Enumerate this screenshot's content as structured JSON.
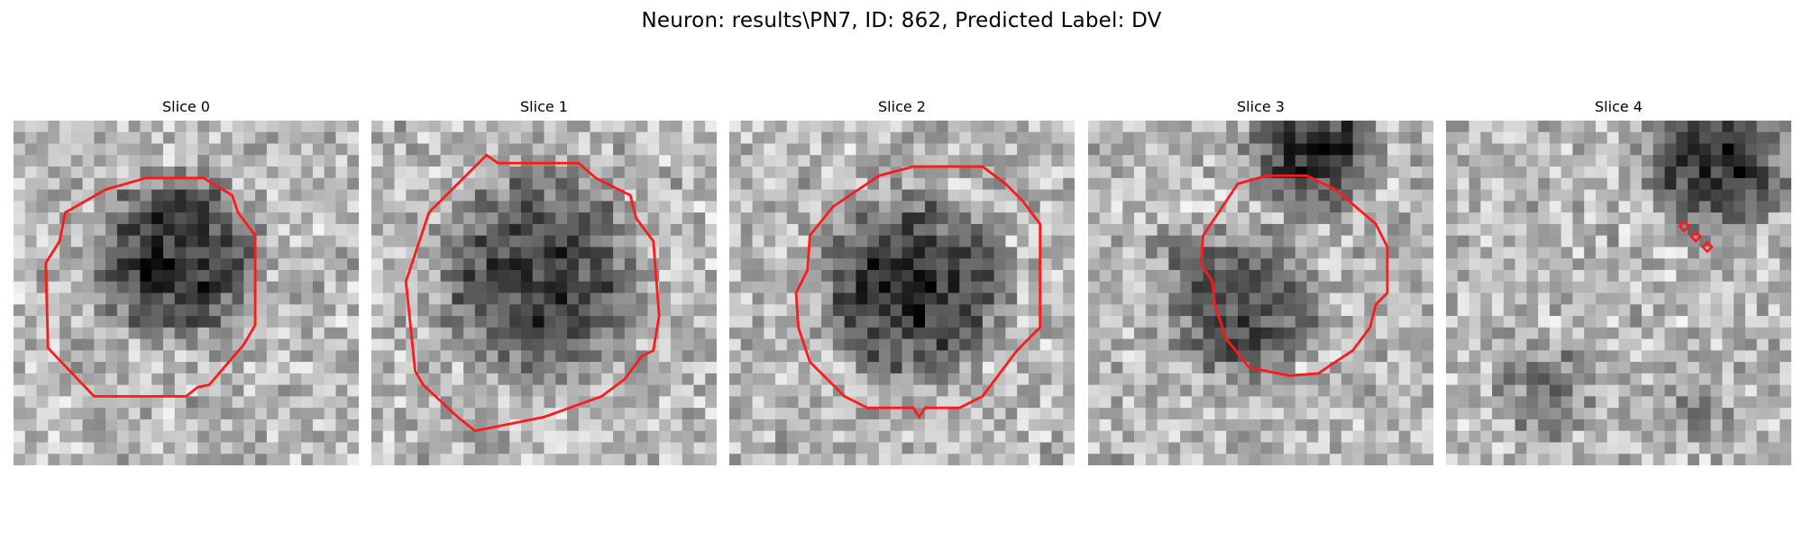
{
  "figure": {
    "title": "Neuron: results\\PN7, ID: 862, Predicted Label: DV"
  },
  "colors": {
    "contour": "#ff1a1a",
    "background": "#ffffff",
    "colormap": "grayscale"
  },
  "slices": [
    {
      "title": "Slice 0"
    },
    {
      "title": "Slice 1"
    },
    {
      "title": "Slice 2"
    },
    {
      "title": "Slice 3"
    },
    {
      "title": "Slice 4"
    }
  ]
}
